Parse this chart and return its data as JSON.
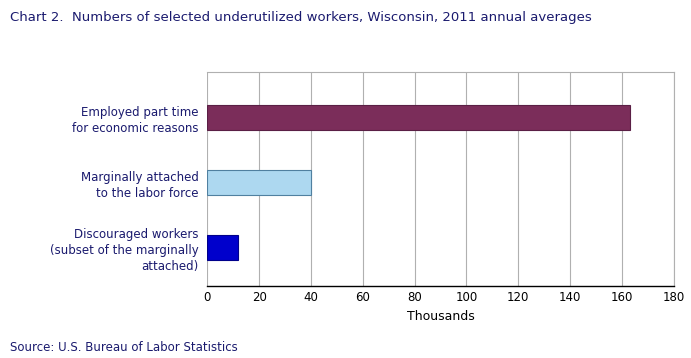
{
  "title": "Chart 2.  Numbers of selected underutilized workers, Wisconsin, 2011 annual averages",
  "categories": [
    "Discouraged workers\n(subset of the marginally\nattached)",
    "Marginally attached\nto the labor force",
    "Employed part time\nfor economic reasons"
  ],
  "values": [
    12,
    40,
    163
  ],
  "bar_colors": [
    "#0000cc",
    "#add8f0",
    "#7b2d5a"
  ],
  "bar_edgecolors": [
    "#00008b",
    "#5080a0",
    "#5a1f45"
  ],
  "xlabel": "Thousands",
  "xlim": [
    0,
    180
  ],
  "xticks": [
    0,
    20,
    40,
    60,
    80,
    100,
    120,
    140,
    160,
    180
  ],
  "source_text": "Source: U.S. Bureau of Labor Statistics",
  "title_color": "#1a1a6e",
  "label_color": "#1a1a6e",
  "source_color": "#1a1a6e",
  "title_fontsize": 9.5,
  "label_fontsize": 8.5,
  "tick_fontsize": 8.5,
  "source_fontsize": 8.5,
  "xlabel_fontsize": 9,
  "background_color": "#ffffff",
  "grid_color": "#b0b0b0",
  "bar_height": 0.38
}
